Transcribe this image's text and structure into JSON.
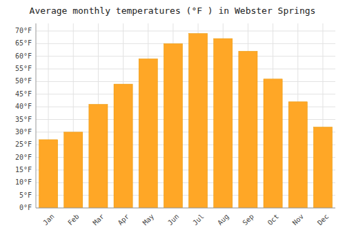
{
  "chart_data": {
    "type": "bar",
    "title": "Average monthly temperatures (°F ) in Webster Springs",
    "categories": [
      "Jan",
      "Feb",
      "Mar",
      "Apr",
      "May",
      "Jun",
      "Jul",
      "Aug",
      "Sep",
      "Oct",
      "Nov",
      "Dec"
    ],
    "values": [
      27,
      30,
      41,
      49,
      59,
      65,
      69,
      67,
      62,
      51,
      42,
      32
    ],
    "color": "#FFA726",
    "ylim": [
      0,
      73
    ],
    "yticks": [
      {
        "value": 0,
        "label": "0°F"
      },
      {
        "value": 5,
        "label": "5°F"
      },
      {
        "value": 10,
        "label": "10°F"
      },
      {
        "value": 15,
        "label": "15°F"
      },
      {
        "value": 20,
        "label": "20°F"
      },
      {
        "value": 25,
        "label": "25°F"
      },
      {
        "value": 30,
        "label": "30°F"
      },
      {
        "value": 35,
        "label": "35°F"
      },
      {
        "value": 40,
        "label": "40°F"
      },
      {
        "value": 45,
        "label": "45°F"
      },
      {
        "value": 50,
        "label": "50°F"
      },
      {
        "value": 55,
        "label": "55°F"
      },
      {
        "value": 60,
        "label": "60°F"
      },
      {
        "value": 65,
        "label": "65°F"
      },
      {
        "value": 70,
        "label": "70°F"
      }
    ],
    "grid": true
  }
}
